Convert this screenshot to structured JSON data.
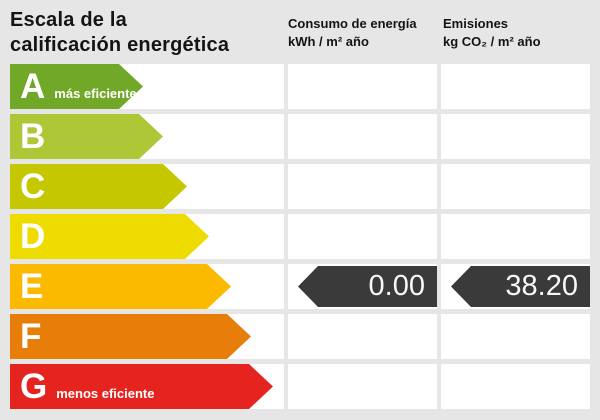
{
  "title": {
    "line1": "Escala de la",
    "line2": "calificación energética"
  },
  "columns": {
    "consumo": {
      "title": "Consumo de energía",
      "units": "kWh / m² año"
    },
    "emisiones": {
      "title": "Emisiones",
      "units": "kg CO₂ / m² año"
    }
  },
  "scale": {
    "rows": [
      {
        "letter": "A",
        "note": "más eficiente",
        "color": "#71a828",
        "arrow_width": 133
      },
      {
        "letter": "B",
        "note": "",
        "color": "#aec736",
        "arrow_width": 153
      },
      {
        "letter": "C",
        "note": "",
        "color": "#c5c800",
        "arrow_width": 177
      },
      {
        "letter": "D",
        "note": "",
        "color": "#eedc00",
        "arrow_width": 199
      },
      {
        "letter": "E",
        "note": "",
        "color": "#fbba00",
        "arrow_width": 221,
        "consumo_value": "0.00",
        "emisiones_value": "38.20"
      },
      {
        "letter": "F",
        "note": "",
        "color": "#e87e0a",
        "arrow_width": 241
      },
      {
        "letter": "G",
        "note": "menos eficiente",
        "color": "#e52420",
        "arrow_width": 263
      }
    ]
  },
  "result": {
    "rating_letter": "E",
    "consumo_value": "0.00",
    "emisiones_value": "38.20"
  },
  "colors": {
    "page_bg": "#e6e6e6",
    "cell_bg": "#ffffff",
    "badge_bg": "#3a3a3a",
    "badge_text": "#f7f7f7"
  },
  "chart_data": {
    "type": "table",
    "title": "Escala de la calificación energética",
    "categories": [
      "A",
      "B",
      "C",
      "D",
      "E",
      "F",
      "G"
    ],
    "category_notes": {
      "A": "más eficiente",
      "G": "menos eficiente"
    },
    "columns": [
      "Consumo de energía kWh / m² año",
      "Emisiones kg CO₂ / m² año"
    ],
    "selected_rating": "E",
    "values": {
      "consumo_kwh_m2_ano": 0.0,
      "emisiones_kg_co2_m2_ano": 38.2
    },
    "bar_colors": [
      "#71a828",
      "#aec736",
      "#c5c800",
      "#eedc00",
      "#fbba00",
      "#e87e0a",
      "#e52420"
    ]
  }
}
